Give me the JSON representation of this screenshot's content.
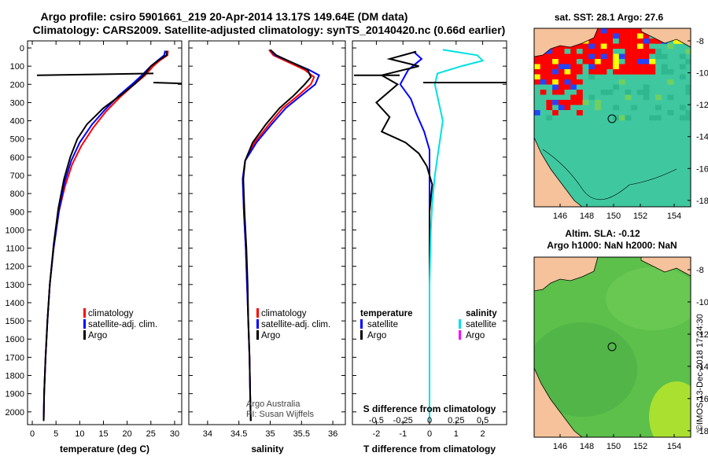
{
  "titles": {
    "line1": "Argo profile: csiro 5901661_219 20-Apr-2014 13.17S 149.64E (DM data)",
    "line2": "Climatology: CARS2009. Satellite-adjusted climatology: synTS_20140420.nc (0.66d earlier)"
  },
  "depth_axis": {
    "ticks": [
      0,
      100,
      200,
      300,
      400,
      500,
      600,
      700,
      800,
      900,
      1000,
      1100,
      1200,
      1300,
      1400,
      1500,
      1600,
      1700,
      1800,
      1900,
      2000
    ],
    "range": [
      0,
      2070
    ]
  },
  "chart_data": [
    {
      "type": "line",
      "id": "temperature",
      "xlabel": "temperature (deg C)",
      "xlim": [
        -1,
        31.5
      ],
      "xticks": [
        0,
        5,
        10,
        15,
        20,
        25,
        30
      ],
      "legend": [
        "climatology",
        "satellite-adj. clim.",
        "Argo"
      ],
      "series": [
        {
          "name": "climatology",
          "color": "#ff0000",
          "points": [
            [
              28.6,
              15
            ],
            [
              28.5,
              40
            ],
            [
              26.8,
              70
            ],
            [
              25.5,
              100
            ],
            [
              23.8,
              150
            ],
            [
              21.5,
              200
            ],
            [
              18.5,
              270
            ],
            [
              15.5,
              350
            ],
            [
              12.8,
              440
            ],
            [
              10.3,
              540
            ],
            [
              8.4,
              640
            ],
            [
              6.9,
              760
            ],
            [
              5.6,
              900
            ],
            [
              4.5,
              1100
            ],
            [
              3.7,
              1300
            ],
            [
              3.2,
              1500
            ],
            [
              2.8,
              1700
            ],
            [
              2.5,
              1900
            ],
            [
              2.4,
              2050
            ]
          ]
        },
        {
          "name": "satellite-adj. clim.",
          "color": "#0000ff",
          "points": [
            [
              28.0,
              15
            ],
            [
              27.8,
              40
            ],
            [
              26.4,
              70
            ],
            [
              25.0,
              100
            ],
            [
              23.1,
              150
            ],
            [
              21.0,
              200
            ],
            [
              18.3,
              260
            ],
            [
              15.3,
              340
            ],
            [
              12.6,
              420
            ],
            [
              10.0,
              520
            ],
            [
              8.2,
              620
            ],
            [
              6.8,
              740
            ],
            [
              5.6,
              900
            ],
            [
              4.5,
              1100
            ],
            [
              3.7,
              1300
            ],
            [
              3.2,
              1500
            ],
            [
              2.8,
              1700
            ],
            [
              2.5,
              1900
            ],
            [
              2.4,
              2050
            ]
          ]
        },
        {
          "name": "Argo",
          "color": "#000000",
          "points": [
            [
              28.3,
              15
            ],
            [
              28.3,
              40
            ],
            [
              26.5,
              70
            ],
            [
              25.0,
              100
            ],
            [
              23.5,
              150
            ],
            [
              21.5,
              200
            ],
            [
              18.6,
              260
            ],
            [
              15.0,
              330
            ],
            [
              11.5,
              420
            ],
            [
              9.5,
              500
            ],
            [
              8.0,
              600
            ],
            [
              6.7,
              720
            ],
            [
              5.5,
              880
            ],
            [
              4.5,
              1080
            ],
            [
              3.7,
              1300
            ],
            [
              3.2,
              1500
            ],
            [
              2.8,
              1700
            ],
            [
              2.5,
              1900
            ],
            [
              2.4,
              2050
            ]
          ]
        }
      ]
    },
    {
      "type": "line",
      "id": "salinity",
      "xlabel": "salinity",
      "xlim": [
        33.7,
        36.2
      ],
      "xticks": [
        34,
        34.5,
        35,
        35.5,
        36
      ],
      "legend": [
        "climatology",
        "satellite-adj. clim.",
        "Argo"
      ],
      "credit_line1": "Argo Australia",
      "credit_line2": "PI: Susan Wijffels",
      "series": [
        {
          "name": "climatology",
          "color": "#ff0000",
          "points": [
            [
              34.98,
              10
            ],
            [
              35.05,
              40
            ],
            [
              35.3,
              80
            ],
            [
              35.55,
              120
            ],
            [
              35.7,
              160
            ],
            [
              35.65,
              200
            ],
            [
              35.45,
              260
            ],
            [
              35.2,
              330
            ],
            [
              34.98,
              420
            ],
            [
              34.75,
              520
            ],
            [
              34.6,
              620
            ],
            [
              34.56,
              720
            ],
            [
              34.58,
              900
            ],
            [
              34.61,
              1100
            ],
            [
              34.63,
              1300
            ],
            [
              34.65,
              1500
            ],
            [
              34.67,
              1700
            ],
            [
              34.68,
              1900
            ],
            [
              34.69,
              2050
            ]
          ]
        },
        {
          "name": "satellite-adj. clim.",
          "color": "#0000ff",
          "points": [
            [
              35.0,
              10
            ],
            [
              35.08,
              40
            ],
            [
              35.35,
              80
            ],
            [
              35.62,
              120
            ],
            [
              35.78,
              150
            ],
            [
              35.72,
              200
            ],
            [
              35.5,
              260
            ],
            [
              35.25,
              330
            ],
            [
              35.02,
              420
            ],
            [
              34.78,
              520
            ],
            [
              34.6,
              620
            ],
            [
              34.56,
              720
            ],
            [
              34.58,
              900
            ],
            [
              34.61,
              1100
            ],
            [
              34.63,
              1300
            ],
            [
              34.65,
              1500
            ],
            [
              34.67,
              1700
            ],
            [
              34.68,
              1900
            ],
            [
              34.69,
              2050
            ]
          ]
        },
        {
          "name": "Argo",
          "color": "#000000",
          "points": [
            [
              35.0,
              10
            ],
            [
              35.1,
              40
            ],
            [
              35.35,
              80
            ],
            [
              35.6,
              120
            ],
            [
              35.65,
              160
            ],
            [
              35.55,
              200
            ],
            [
              35.38,
              260
            ],
            [
              35.15,
              330
            ],
            [
              34.93,
              420
            ],
            [
              34.72,
              520
            ],
            [
              34.6,
              620
            ],
            [
              34.57,
              720
            ],
            [
              34.59,
              900
            ],
            [
              34.62,
              1100
            ],
            [
              34.64,
              1300
            ],
            [
              34.65,
              1500
            ],
            [
              34.67,
              1700
            ],
            [
              34.68,
              1900
            ],
            [
              34.69,
              2050
            ]
          ]
        }
      ]
    },
    {
      "type": "line",
      "id": "difference",
      "xlabel": "T difference from climatology",
      "xlabel2": "S difference from climatology",
      "xlim": [
        -2.9,
        2.9
      ],
      "xticks": [
        -2,
        -1,
        0,
        1,
        2
      ],
      "xticks2": [
        "-0.5",
        "-0.25",
        "0",
        "0.25",
        "0.5"
      ],
      "legend_left_title": "temperature",
      "legend_right_title": "salinity",
      "legend_left": [
        "satellite",
        "Argo"
      ],
      "legend_right": [
        "satellite",
        "Argo"
      ],
      "series": [
        {
          "name": "T satellite",
          "color": "#0000ff",
          "points": [
            [
              -0.6,
              20
            ],
            [
              -0.3,
              60
            ],
            [
              -0.8,
              120
            ],
            [
              -1.1,
              200
            ],
            [
              -0.7,
              280
            ],
            [
              -0.5,
              360
            ],
            [
              -0.2,
              460
            ],
            [
              0.0,
              560
            ],
            [
              0.0,
              700
            ],
            [
              0.0,
              900
            ],
            [
              0.0,
              1300
            ],
            [
              0.0,
              1700
            ],
            [
              0.0,
              2050
            ]
          ]
        },
        {
          "name": "T Argo",
          "color": "#000000",
          "points": [
            [
              -0.5,
              20
            ],
            [
              -1.5,
              60
            ],
            [
              -0.4,
              100
            ],
            [
              -1.8,
              150
            ],
            [
              -1.2,
              200
            ],
            [
              -2.0,
              300
            ],
            [
              -1.5,
              380
            ],
            [
              -1.8,
              460
            ],
            [
              -0.9,
              520
            ],
            [
              -0.4,
              580
            ],
            [
              -0.1,
              650
            ],
            [
              0.1,
              750
            ],
            [
              0.0,
              900
            ],
            [
              0.0,
              1300
            ],
            [
              0.0,
              1700
            ],
            [
              0.0,
              2050
            ]
          ]
        },
        {
          "name": "S satellite",
          "color": "#00e0e0",
          "points": [
            [
              0.5,
              10
            ],
            [
              1.8,
              40
            ],
            [
              2.0,
              70
            ],
            [
              1.2,
              100
            ],
            [
              0.3,
              140
            ],
            [
              0.2,
              200
            ],
            [
              0.35,
              300
            ],
            [
              0.5,
              400
            ],
            [
              0.4,
              500
            ],
            [
              0.3,
              600
            ],
            [
              0.2,
              700
            ],
            [
              0.1,
              850
            ],
            [
              0.05,
              1000
            ],
            [
              0.0,
              1300
            ],
            [
              0.0,
              1700
            ],
            [
              0.0,
              2050
            ]
          ]
        }
      ]
    }
  ],
  "map_top": {
    "title": "sat. SST: 28.1 Argo: 27.6",
    "xticks": [
      "146",
      "148",
      "150",
      "152",
      "154"
    ],
    "yticks": [
      "-8",
      "-10",
      "-12",
      "-14",
      "-16",
      "-18"
    ]
  },
  "map_bottom": {
    "title1": "Altim. SLA: -0.12",
    "title2": "Argo h1000: NaN h2000: NaN",
    "xticks": [
      "146",
      "148",
      "150",
      "152",
      "154"
    ],
    "yticks": [
      "-8",
      "-10",
      "-12",
      "-14",
      "-16",
      "-18"
    ]
  },
  "footer": {
    "imos_stamp": "©IMOS 13-Dec-2018 17:24:30"
  },
  "colors": {
    "climatology": "#ff0000",
    "satellite": "#0000ff",
    "argo": "#000000",
    "salinity_sat": "#00e0e0",
    "salinity_argo": "#ff00ff",
    "land": "#f5c29b",
    "ocean_top": "#3fc8a0",
    "ocean_bottom": "#5cc04a"
  }
}
